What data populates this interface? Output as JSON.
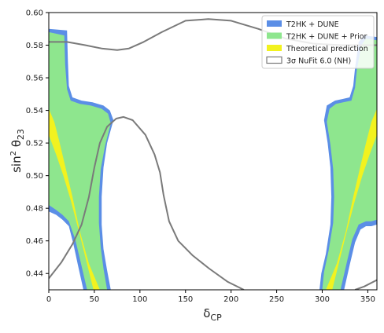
{
  "chart_data": {
    "type": "area",
    "xlabel": "δ_CP",
    "ylabel": "sin² θ_23",
    "xlim": [
      0,
      360
    ],
    "ylim": [
      0.43,
      0.6
    ],
    "xticks": [
      0,
      50,
      100,
      150,
      200,
      250,
      300,
      350
    ],
    "yticks": [
      0.44,
      0.46,
      0.48,
      0.5,
      0.52,
      0.54,
      0.56,
      0.58,
      0.6
    ],
    "grid": false,
    "legend_position": "top-right",
    "colors": {
      "t2hk_dune": "#5b8ee6",
      "t2hk_dune_prior": "#8ee68e",
      "theory": "#f2f21f",
      "nufit": "#7a7a7a"
    },
    "series": [
      {
        "name": "T2HK + DUNE",
        "kind": "region",
        "regions": [
          [
            [
              0,
              0.59
            ],
            [
              20,
              0.589
            ],
            [
              21,
              0.57
            ],
            [
              22,
              0.555
            ],
            [
              26,
              0.548
            ],
            [
              36,
              0.546
            ],
            [
              48,
              0.545
            ],
            [
              60,
              0.543
            ],
            [
              67,
              0.54
            ],
            [
              71,
              0.534
            ],
            [
              64,
              0.52
            ],
            [
              60,
              0.505
            ],
            [
              58,
              0.487
            ],
            [
              58,
              0.47
            ],
            [
              60,
              0.455
            ],
            [
              64,
              0.442
            ],
            [
              68,
              0.43
            ],
            [
              38,
              0.43
            ],
            [
              32,
              0.445
            ],
            [
              27,
              0.458
            ],
            [
              22,
              0.469
            ],
            [
              15,
              0.473
            ],
            [
              8,
              0.476
            ],
            [
              0,
              0.478
            ]
          ],
          [
            [
              360,
              0.585
            ],
            [
              346,
              0.586
            ],
            [
              340,
              0.582
            ],
            [
              336,
              0.566
            ],
            [
              334,
              0.555
            ],
            [
              330,
              0.548
            ],
            [
              322,
              0.547
            ],
            [
              314,
              0.546
            ],
            [
              305,
              0.543
            ],
            [
              302,
              0.534
            ],
            [
              306,
              0.52
            ],
            [
              309,
              0.505
            ],
            [
              310,
              0.487
            ],
            [
              309,
              0.47
            ],
            [
              304,
              0.452
            ],
            [
              299,
              0.44
            ],
            [
              297,
              0.43
            ],
            [
              324,
              0.43
            ],
            [
              330,
              0.445
            ],
            [
              336,
              0.459
            ],
            [
              342,
              0.467
            ],
            [
              348,
              0.469
            ],
            [
              354,
              0.469
            ],
            [
              360,
              0.47
            ]
          ]
        ]
      },
      {
        "name": "T2HK + DUNE + Prior",
        "kind": "region",
        "regions": [
          [
            [
              0,
              0.588
            ],
            [
              17,
              0.586
            ],
            [
              18,
              0.568
            ],
            [
              20,
              0.553
            ],
            [
              24,
              0.546
            ],
            [
              34,
              0.544
            ],
            [
              46,
              0.543
            ],
            [
              58,
              0.541
            ],
            [
              65,
              0.538
            ],
            [
              68,
              0.532
            ],
            [
              62,
              0.519
            ],
            [
              57,
              0.504
            ],
            [
              55,
              0.487
            ],
            [
              55,
              0.471
            ],
            [
              57,
              0.456
            ],
            [
              60,
              0.443
            ],
            [
              64,
              0.43
            ],
            [
              42,
              0.43
            ],
            [
              35,
              0.447
            ],
            [
              29,
              0.461
            ],
            [
              22,
              0.472
            ],
            [
              15,
              0.476
            ],
            [
              8,
              0.479
            ],
            [
              0,
              0.482
            ]
          ],
          [
            [
              360,
              0.583
            ],
            [
              348,
              0.584
            ],
            [
              343,
              0.58
            ],
            [
              338,
              0.565
            ],
            [
              336,
              0.554
            ],
            [
              332,
              0.546
            ],
            [
              323,
              0.545
            ],
            [
              315,
              0.544
            ],
            [
              308,
              0.541
            ],
            [
              305,
              0.533
            ],
            [
              309,
              0.519
            ],
            [
              312,
              0.504
            ],
            [
              313,
              0.487
            ],
            [
              312,
              0.471
            ],
            [
              307,
              0.454
            ],
            [
              302,
              0.441
            ],
            [
              300,
              0.43
            ],
            [
              320,
              0.43
            ],
            [
              327,
              0.447
            ],
            [
              333,
              0.461
            ],
            [
              340,
              0.47
            ],
            [
              348,
              0.472
            ],
            [
              354,
              0.472
            ],
            [
              360,
              0.473
            ]
          ]
        ]
      },
      {
        "name": "Theoretical prediction",
        "kind": "region",
        "regions": [
          [
            [
              0,
              0.541
            ],
            [
              6,
              0.533
            ],
            [
              12,
              0.52
            ],
            [
              18,
              0.506
            ],
            [
              26,
              0.487
            ],
            [
              34,
              0.466
            ],
            [
              44,
              0.446
            ],
            [
              56,
              0.43
            ],
            [
              49,
              0.43
            ],
            [
              41,
              0.448
            ],
            [
              33,
              0.466
            ],
            [
              24,
              0.485
            ],
            [
              16,
              0.5
            ],
            [
              8,
              0.513
            ],
            [
              0,
              0.525
            ]
          ],
          [
            [
              360,
              0.541
            ],
            [
              354,
              0.533
            ],
            [
              348,
              0.52
            ],
            [
              342,
              0.506
            ],
            [
              334,
              0.487
            ],
            [
              326,
              0.466
            ],
            [
              316,
              0.446
            ],
            [
              304,
              0.43
            ],
            [
              311,
              0.43
            ],
            [
              319,
              0.448
            ],
            [
              327,
              0.466
            ],
            [
              336,
              0.485
            ],
            [
              344,
              0.5
            ],
            [
              352,
              0.513
            ],
            [
              360,
              0.525
            ]
          ]
        ]
      },
      {
        "name": "3σ NuFit 6.0 (NH)",
        "kind": "contour",
        "lines": [
          [
            [
              0,
              0.582
            ],
            [
              20,
              0.582
            ],
            [
              40,
              0.58
            ],
            [
              58,
              0.578
            ],
            [
              75,
              0.577
            ],
            [
              88,
              0.578
            ],
            [
              104,
              0.582
            ],
            [
              124,
              0.588
            ],
            [
              150,
              0.595
            ],
            [
              175,
              0.596
            ],
            [
              200,
              0.595
            ],
            [
              230,
              0.59
            ],
            [
              260,
              0.584
            ],
            [
              290,
              0.581
            ],
            [
              320,
              0.58
            ],
            [
              360,
              0.58
            ]
          ],
          [
            [
              0,
              0.437
            ],
            [
              14,
              0.447
            ],
            [
              26,
              0.458
            ],
            [
              36,
              0.47
            ],
            [
              44,
              0.487
            ],
            [
              50,
              0.505
            ],
            [
              56,
              0.52
            ],
            [
              64,
              0.53
            ],
            [
              74,
              0.535
            ],
            [
              82,
              0.536
            ],
            [
              92,
              0.534
            ],
            [
              106,
              0.525
            ],
            [
              116,
              0.513
            ],
            [
              122,
              0.502
            ],
            [
              126,
              0.488
            ],
            [
              132,
              0.472
            ],
            [
              142,
              0.46
            ],
            [
              158,
              0.451
            ],
            [
              176,
              0.443
            ],
            [
              196,
              0.435
            ],
            [
              214,
              0.43
            ]
          ],
          [
            [
              336,
              0.43
            ],
            [
              346,
              0.432
            ],
            [
              360,
              0.436
            ]
          ]
        ]
      }
    ]
  }
}
